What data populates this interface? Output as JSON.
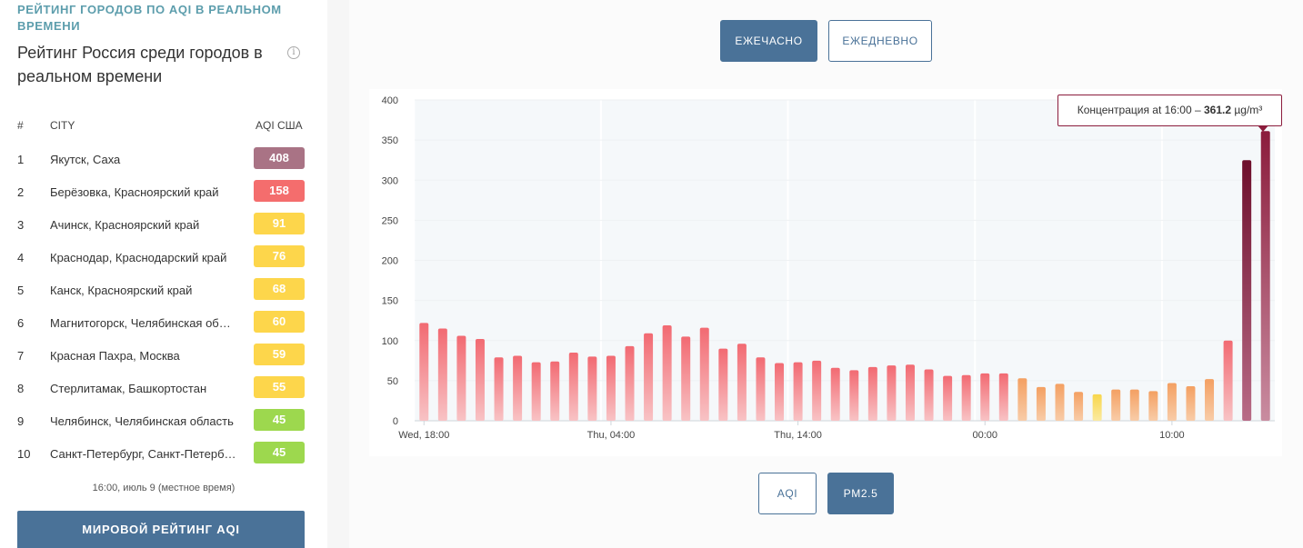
{
  "sidebar": {
    "kicker": "РЕЙТИНГ ГОРОДОВ ПО AQI В РЕАЛЬНОМ ВРЕМЕНИ",
    "title": "Рейтинг Россия среди городов в реальном времени",
    "info_icon": "info-icon",
    "columns": {
      "rank": "#",
      "city": "CITY",
      "aqi": "AQI США"
    },
    "rows": [
      {
        "rank": "1",
        "city": "Якутск, Саха",
        "aqi": "408",
        "color": "#a97385"
      },
      {
        "rank": "2",
        "city": "Берёзовка, Красноярский край",
        "aqi": "158",
        "color": "#f46d6d"
      },
      {
        "rank": "3",
        "city": "Ачинск, Красноярский край",
        "aqi": "91",
        "color": "#fdd64b"
      },
      {
        "rank": "4",
        "city": "Краснодар, Краснодарский край",
        "aqi": "76",
        "color": "#fdd64b"
      },
      {
        "rank": "5",
        "city": "Канск, Красноярский край",
        "aqi": "68",
        "color": "#fdd64b"
      },
      {
        "rank": "6",
        "city": "Магнитогорск, Челябинская об…",
        "aqi": "60",
        "color": "#fdd64b"
      },
      {
        "rank": "7",
        "city": "Красная Пахра, Москва",
        "aqi": "59",
        "color": "#fdd64b"
      },
      {
        "rank": "8",
        "city": "Стерлитамак, Башкортостан",
        "aqi": "55",
        "color": "#fdd64b"
      },
      {
        "rank": "9",
        "city": "Челябинск, Челябинская область",
        "aqi": "45",
        "color": "#9dd84e"
      },
      {
        "rank": "10",
        "city": "Санкт-Петербург, Санкт-Петерб…",
        "aqi": "45",
        "color": "#9dd84e"
      }
    ],
    "updated": "16:00, июль 9 (местное время)",
    "world_button": "МИРОВОЙ РЕЙТИНГ AQI"
  },
  "toggles": {
    "period": [
      {
        "label": "ЕЖЕЧАСНО",
        "active": true
      },
      {
        "label": "ЕЖЕДНЕВНО",
        "active": false
      }
    ],
    "pollutant": [
      {
        "label": "AQI",
        "active": false
      },
      {
        "label": "PM2.5",
        "active": true
      }
    ]
  },
  "tooltip": {
    "prefix": "Концентрация at 16:00 – ",
    "value": "361.2",
    "unit": "µg/m³"
  },
  "chart_data": {
    "type": "bar",
    "x_tick_labels": [
      "Wed, 18:00",
      "Thu, 04:00",
      "Thu, 14:00",
      "00:00",
      "10:00"
    ],
    "x_tick_indices": [
      0,
      10,
      20,
      30,
      40
    ],
    "y_ticks": [
      0,
      50,
      100,
      150,
      200,
      250,
      300,
      350,
      400
    ],
    "ylim": [
      0,
      400
    ],
    "values": [
      122,
      115,
      106,
      102,
      79,
      81,
      73,
      74,
      85,
      80,
      81,
      93,
      109,
      119,
      105,
      116,
      90,
      96,
      79,
      72,
      73,
      75,
      66,
      63,
      67,
      69,
      70,
      64,
      56,
      57,
      59,
      59,
      53,
      42,
      46,
      36,
      33,
      39,
      39,
      37,
      47,
      43,
      52,
      100,
      325,
      361.2
    ],
    "series_color_ranges": {
      "moderate": "#f6c79a",
      "unhealthy_sensitive": "#f5a46a",
      "unhealthy": "#f47c80",
      "very_unhealthy": "#8b1c3c",
      "good": "#fbe26a"
    },
    "highlight_index": 45
  }
}
